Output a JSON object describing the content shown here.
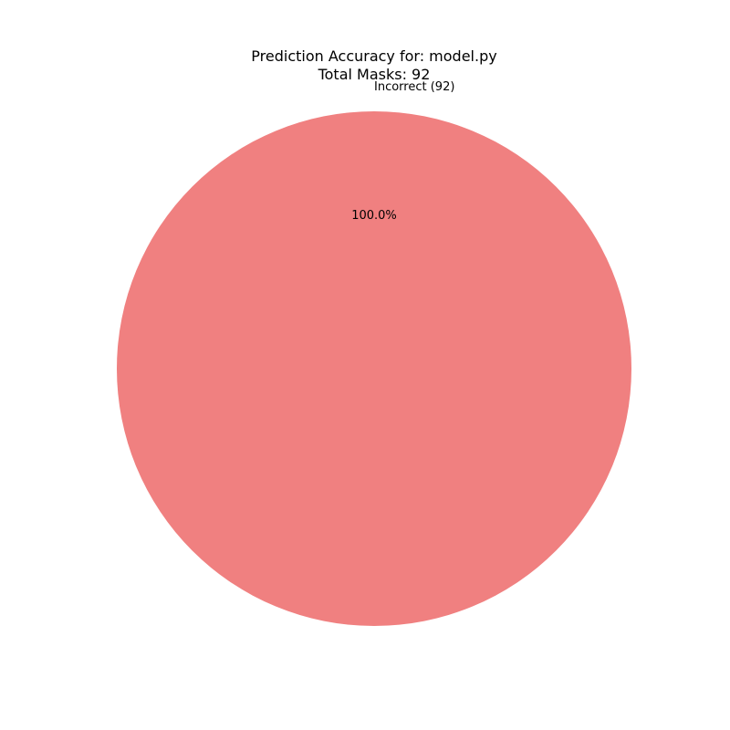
{
  "chart_data": {
    "type": "pie",
    "title": "Prediction Accuracy for: model.py",
    "subtitle": "Total Masks: 92",
    "slices": [
      {
        "label": "Incorrect (92)",
        "value": 92,
        "percent_label": "100.0%",
        "color": "#f08080"
      }
    ],
    "legend": "none"
  }
}
